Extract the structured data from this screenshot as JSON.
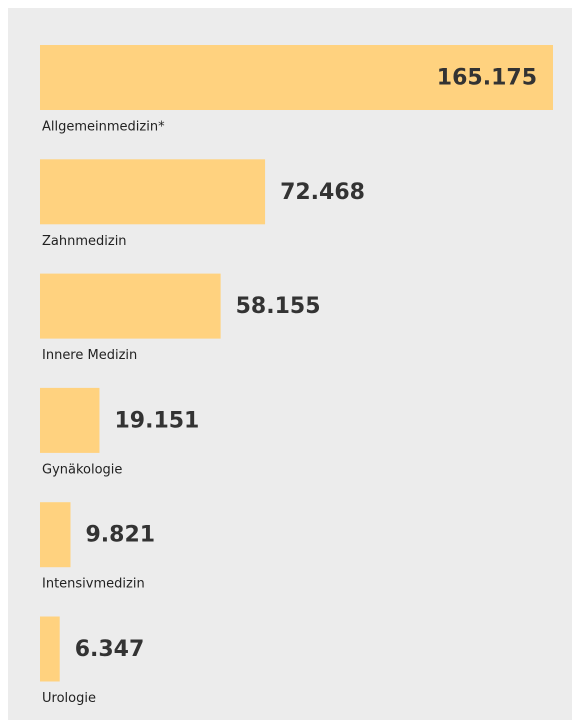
{
  "chart_data": {
    "type": "hbar",
    "categories": [
      "Allgemeinmedizin*",
      "Zahnmedizin",
      "Innere Medizin",
      "Gynäkologie",
      "Intensivmedizin",
      "Urologie"
    ],
    "values": [
      165175,
      72468,
      58155,
      19151,
      9821,
      6347
    ],
    "value_labels": [
      "165.175",
      "72.468",
      "58.155",
      "19.151",
      "9.821",
      "6.347"
    ],
    "color": "#ffd27f"
  }
}
